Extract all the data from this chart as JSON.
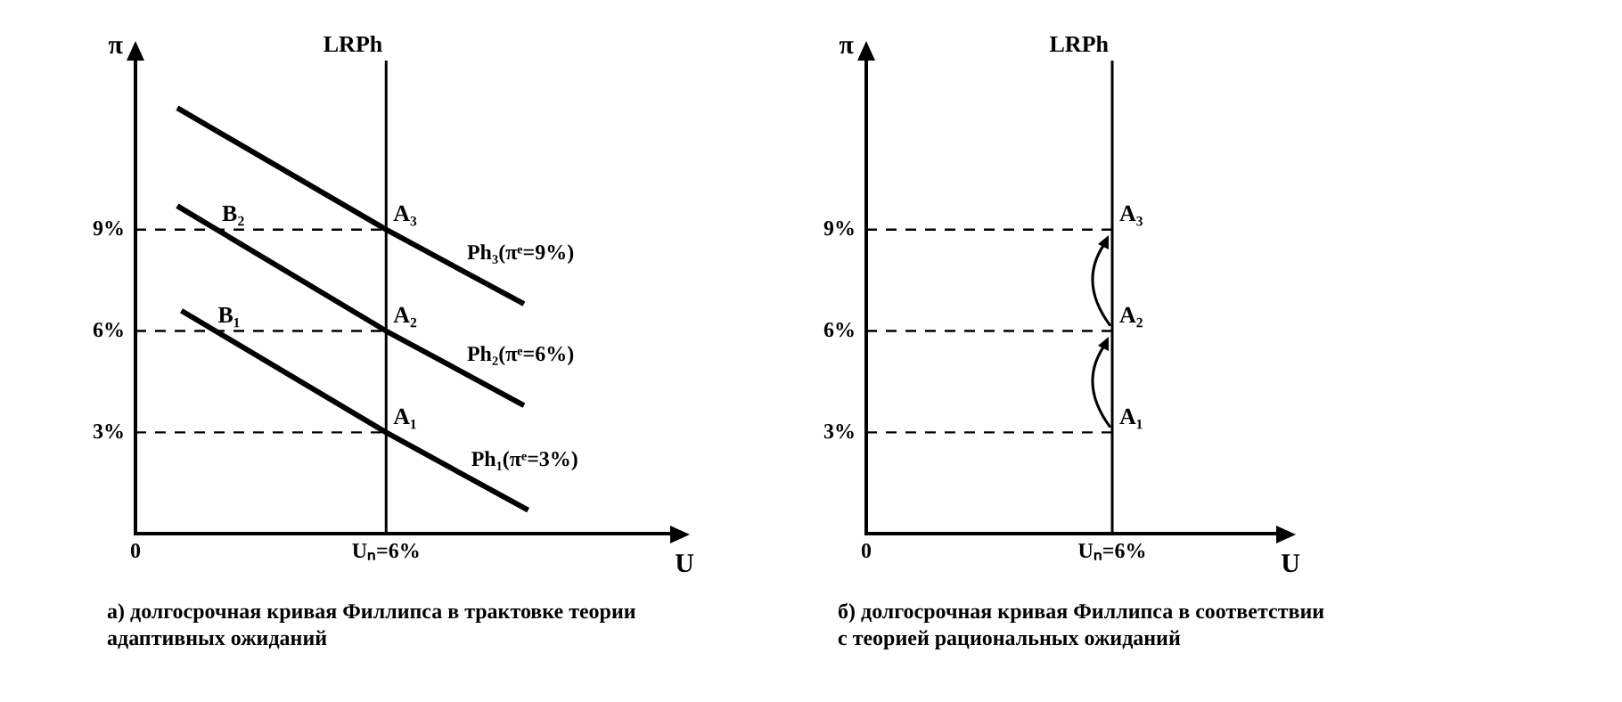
{
  "chart_data": [
    {
      "type": "line",
      "title": "а) долгосрочная кривая Филлипса в трактовке теории адаптивных ожиданий",
      "xlabel": "U",
      "ylabel": "π",
      "xlim": [
        0,
        12.8
      ],
      "xticks": [
        0,
        {
          "value": 6,
          "label": "Uₙ=6%"
        }
      ],
      "ylim": [
        0,
        14
      ],
      "yticks": [
        {
          "value": 3,
          "label": "3%"
        },
        {
          "value": 6,
          "label": "6%"
        },
        {
          "value": 9,
          "label": "9%"
        }
      ],
      "grid": false,
      "legend": false,
      "marker": "none",
      "series": [
        {
          "name": "Ph₃(πᵉ=9%)",
          "color": "#000000",
          "x": [
            1,
            6,
            9.3
          ],
          "values": [
            12.6,
            9,
            6.8
          ]
        },
        {
          "name": "Ph₂(πᵉ=6%)",
          "color": "#000000",
          "x": [
            1,
            6,
            9.3
          ],
          "values": [
            9.7,
            6,
            3.8
          ]
        },
        {
          "name": "Ph₁(πᵉ=3%)",
          "color": "#000000",
          "x": [
            1.1,
            6,
            9.4
          ],
          "values": [
            6.6,
            3,
            0.7
          ]
        },
        {
          "color": "#000000",
          "line_style": "dashed",
          "x": [
            0,
            6
          ],
          "values": [
            9,
            9
          ]
        },
        {
          "color": "#000000",
          "line_style": "dashed",
          "x": [
            0,
            6
          ],
          "values": [
            6,
            6
          ]
        },
        {
          "color": "#000000",
          "line_style": "dashed",
          "x": [
            0,
            6
          ],
          "values": [
            3,
            3
          ]
        }
      ],
      "ref_lines": [
        {
          "axis": "x",
          "value": 6,
          "label": "LRPh"
        }
      ],
      "annotations": [
        {
          "text": "A₃",
          "x": 6,
          "y": 9
        },
        {
          "text": "A₂",
          "x": 6,
          "y": 6
        },
        {
          "text": "A₁",
          "x": 6,
          "y": 3
        },
        {
          "text": "B₂",
          "x": 1.9,
          "y": 9
        },
        {
          "text": "B₁",
          "x": 1.8,
          "y": 6
        }
      ]
    },
    {
      "type": "line",
      "title": "б) долгосрочная кривая Филлипса в соответствии с теорией рациональных ожиданий",
      "xlabel": "U",
      "ylabel": "π",
      "xlim": [
        0,
        10
      ],
      "xticks": [
        0,
        {
          "value": 6,
          "label": "Uₙ=6%"
        }
      ],
      "ylim": [
        0,
        14
      ],
      "yticks": [
        {
          "value": 3,
          "label": "3%"
        },
        {
          "value": 6,
          "label": "6%"
        },
        {
          "value": 9,
          "label": "9%"
        }
      ],
      "grid": false,
      "legend": false,
      "marker": "none",
      "series": [
        {
          "color": "#000000",
          "line_style": "dashed",
          "x": [
            0,
            6
          ],
          "values": [
            9,
            9
          ]
        },
        {
          "color": "#000000",
          "line_style": "dashed",
          "x": [
            0,
            6
          ],
          "values": [
            6,
            6
          ]
        },
        {
          "color": "#000000",
          "line_style": "dashed",
          "x": [
            0,
            6
          ],
          "values": [
            3,
            3
          ]
        }
      ],
      "ref_lines": [
        {
          "axis": "x",
          "value": 6,
          "label": "LRPh"
        }
      ],
      "annotations": [
        {
          "text": "A₃",
          "x": 6,
          "y": 9
        },
        {
          "text": "A₂",
          "x": 6,
          "y": 6
        },
        {
          "text": "A₁",
          "x": 6,
          "y": 3
        }
      ]
    }
  ]
}
